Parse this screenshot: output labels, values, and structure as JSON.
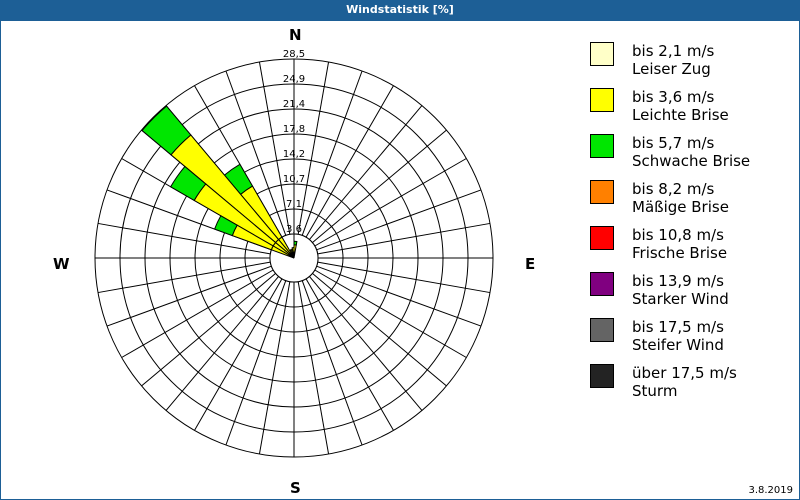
{
  "window": {
    "title": "Windstatistik [%]"
  },
  "footer": {
    "date": "3.8.2019"
  },
  "compass": {
    "n": "N",
    "e": "E",
    "s": "S",
    "w": "W"
  },
  "legend": [
    {
      "range": "bis 2,1 m/s",
      "name": "Leiser Zug",
      "color": "#ffffc8"
    },
    {
      "range": "bis 3,6 m/s",
      "name": "Leichte Brise",
      "color": "#ffff00"
    },
    {
      "range": "bis 5,7 m/s",
      "name": "Schwache Brise",
      "color": "#00e600"
    },
    {
      "range": "bis 8,2 m/s",
      "name": "Mäßige Brise",
      "color": "#ff8000"
    },
    {
      "range": "bis 10,8 m/s",
      "name": "Frische Brise",
      "color": "#ff0000"
    },
    {
      "range": "bis 13,9 m/s",
      "name": "Starker Wind",
      "color": "#800080"
    },
    {
      "range": "bis 17,5 m/s",
      "name": "Steifer Wind",
      "color": "#646464"
    },
    {
      "range": "über 17,5 m/s",
      "name": "Sturm",
      "color": "#232323"
    }
  ],
  "chart_data": {
    "type": "polar-bar (wind rose)",
    "title": "Windstatistik [%]",
    "radial_ticks": [
      "3,6",
      "7,1",
      "10,7",
      "14,2",
      "17,8",
      "21,4",
      "24,9",
      "28,5"
    ],
    "radial_range": [
      0,
      28.5
    ],
    "sector_width_deg": 10,
    "legend_position": "right",
    "sectors": [
      {
        "from": 0,
        "to": 10,
        "cumulative": {
          "bis 3,6 m/s": 1.9,
          "bis 5,7 m/s": 2.4
        }
      },
      {
        "from": 340,
        "to": 350,
        "cumulative": {
          "bis 3,6 m/s": 1.3
        }
      },
      {
        "from": 350,
        "to": 360,
        "cumulative": {
          "bis 3,6 m/s": 1.5
        }
      },
      {
        "from": 330,
        "to": 340,
        "cumulative": {
          "bis 3,6 m/s": 1.2
        }
      },
      {
        "from": 320,
        "to": 330,
        "cumulative": {
          "bis 3,6 m/s": 11.9,
          "bis 5,7 m/s": 15.5
        }
      },
      {
        "from": 310,
        "to": 320,
        "cumulative": {
          "bis 3,6 m/s": 23.0,
          "bis 5,7 m/s": 28.4
        }
      },
      {
        "from": 300,
        "to": 310,
        "cumulative": {
          "bis 3,6 m/s": 16.5,
          "bis 5,7 m/s": 20.4
        }
      },
      {
        "from": 290,
        "to": 300,
        "cumulative": {
          "bis 3,6 m/s": 9.4,
          "bis 5,7 m/s": 12.1
        }
      }
    ]
  }
}
